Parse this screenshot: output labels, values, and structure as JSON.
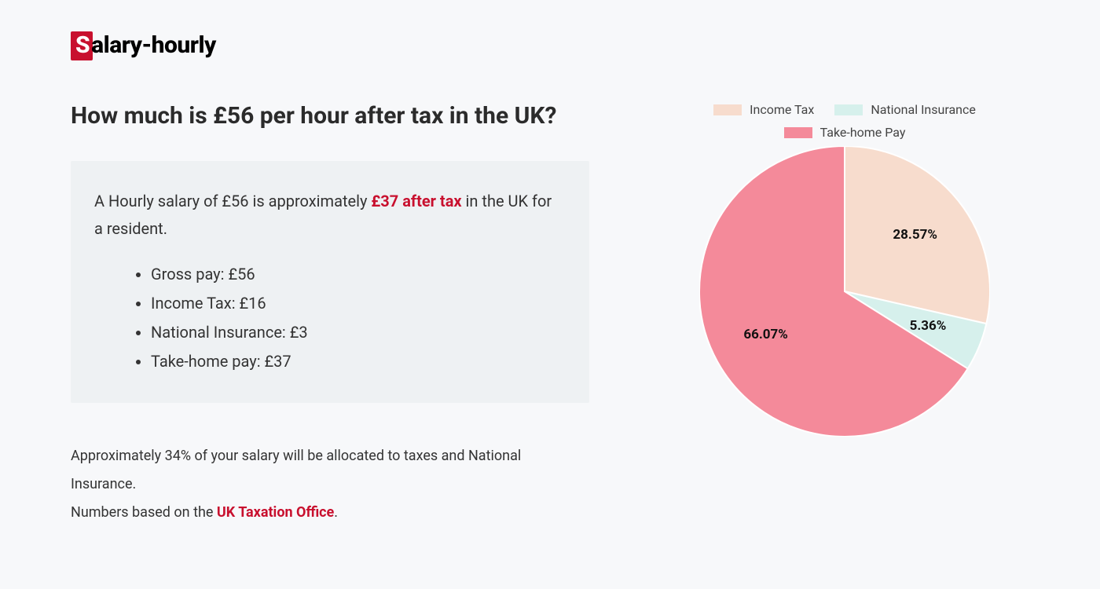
{
  "logo": {
    "first_letter": "S",
    "rest": "alary-hourly"
  },
  "heading": "How much is £56 per hour after tax in the UK?",
  "summary": {
    "prefix": "A Hourly salary of £56 is approximately ",
    "highlight": "£37 after tax",
    "suffix": " in the UK for a resident.",
    "bullets": [
      "Gross pay: £56",
      "Income Tax: £16",
      "National Insurance: £3",
      "Take-home pay: £37"
    ]
  },
  "footnote": {
    "line1": "Approximately 34% of your salary will be allocated to taxes and National Insurance.",
    "line2_prefix": "Numbers based on the ",
    "line2_link": "UK Taxation Office",
    "line2_suffix": "."
  },
  "chart": {
    "type": "pie",
    "background_color": "#f7f8fa",
    "radius": 185,
    "slices": [
      {
        "label": "Income Tax",
        "value": 28.57,
        "display": "28.57%",
        "color": "#f7dccd"
      },
      {
        "label": "National Insurance",
        "value": 5.36,
        "display": "5.36%",
        "color": "#d6f0ec"
      },
      {
        "label": "Take-home Pay",
        "value": 66.07,
        "display": "66.07%",
        "color": "#f48a9a"
      }
    ],
    "start_angle_deg": -90,
    "label_fontsize": 17,
    "label_fontweight": 700,
    "legend_fontsize": 16,
    "slice_separator_color": "#ffffff",
    "slice_separator_width": 2
  }
}
